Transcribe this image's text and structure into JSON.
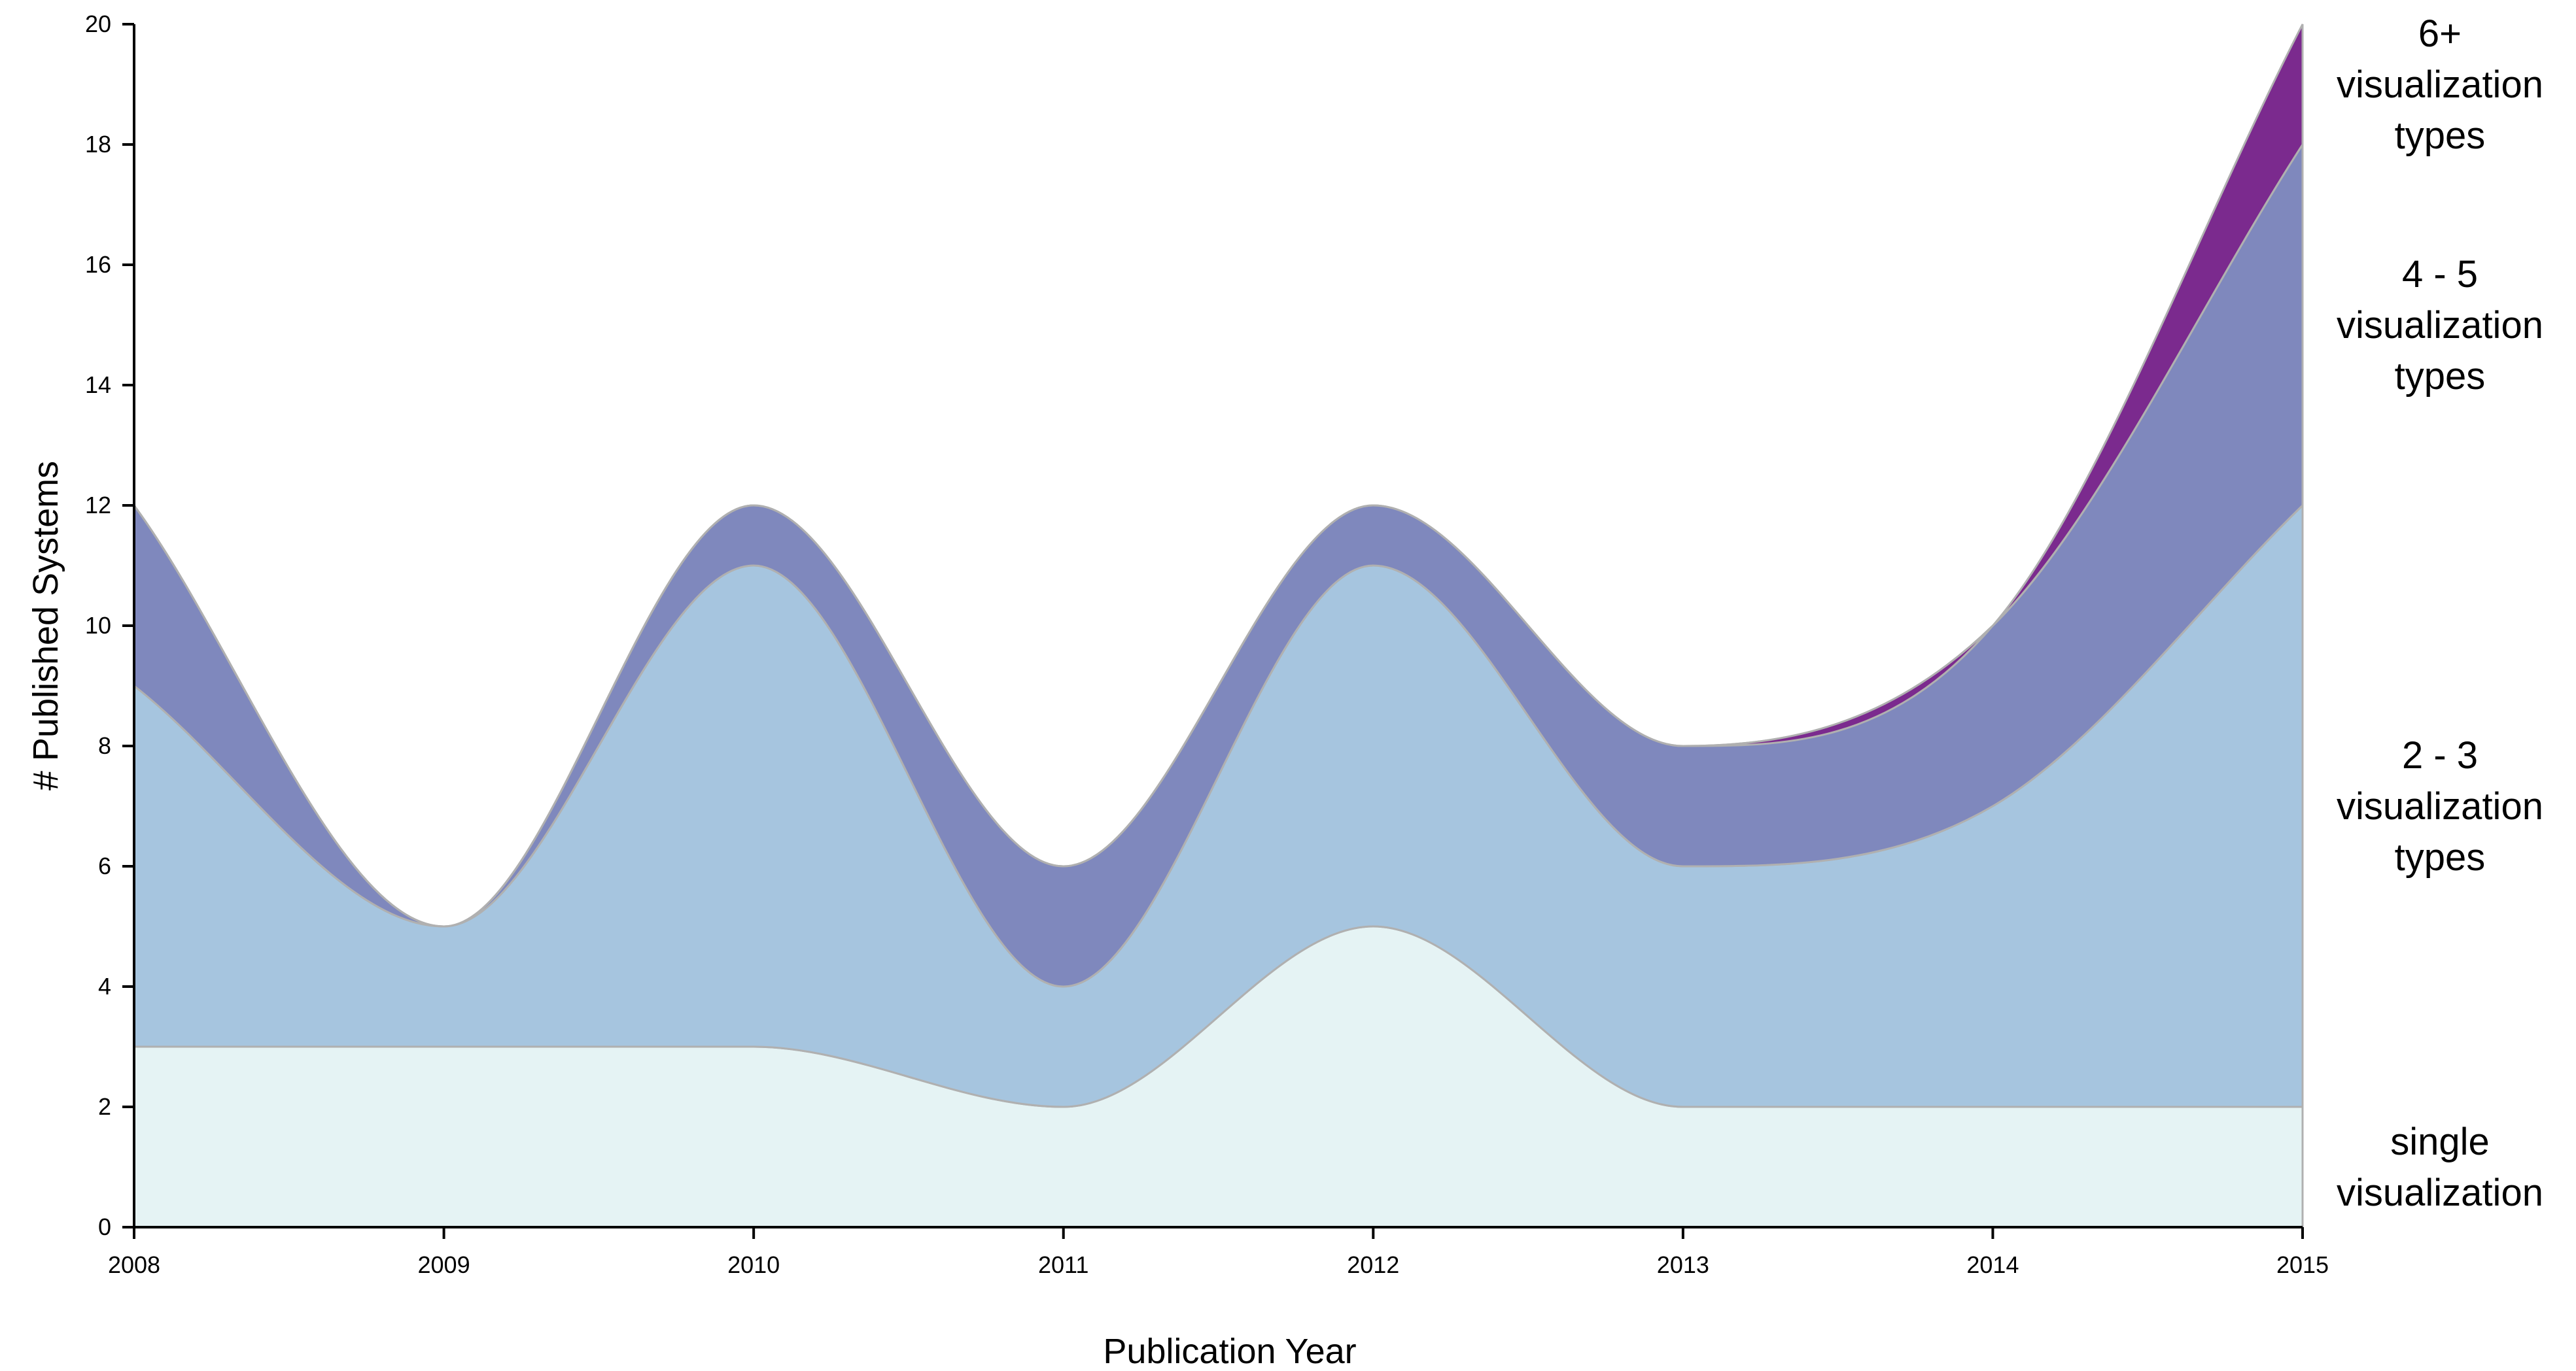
{
  "chart_data": {
    "type": "area",
    "stacked": true,
    "x": [
      2008,
      2009,
      2010,
      2011,
      2012,
      2013,
      2014,
      2015
    ],
    "series": [
      {
        "name": "single visualization",
        "values": [
          3,
          3,
          3,
          2,
          5,
          2,
          2,
          2
        ],
        "color": "#e5f3f4"
      },
      {
        "name": "2 - 3 visualization types",
        "values": [
          6,
          2,
          8,
          2,
          6,
          4,
          5,
          10
        ],
        "color": "#a6c5df"
      },
      {
        "name": "4 - 5 visualization types",
        "values": [
          3,
          0,
          1,
          2,
          1,
          2,
          3,
          6
        ],
        "color": "#7f88bd"
      },
      {
        "name": "6+ visualization types",
        "values": [
          0,
          0,
          0,
          0,
          0,
          0,
          0,
          2
        ],
        "color": "#7b2a8e"
      }
    ],
    "series_labels": [
      {
        "lines": [
          "single",
          "visualization"
        ]
      },
      {
        "lines": [
          "2 - 3",
          "visualization",
          "types"
        ]
      },
      {
        "lines": [
          "4 - 5",
          "visualization",
          "types"
        ]
      },
      {
        "lines": [
          "6+",
          "visualization",
          "types"
        ]
      }
    ],
    "x_ticks": [
      "2008",
      "2009",
      "2010",
      "2011",
      "2012",
      "2013",
      "2014",
      "2015"
    ],
    "y_ticks": [
      "0",
      "2",
      "4",
      "6",
      "8",
      "10",
      "12",
      "14",
      "16",
      "18",
      "20"
    ],
    "xlabel": "Publication Year",
    "ylabel": "# Published Systems",
    "ylim": [
      0,
      20
    ],
    "grid": false,
    "legend": "right, inline labels"
  }
}
